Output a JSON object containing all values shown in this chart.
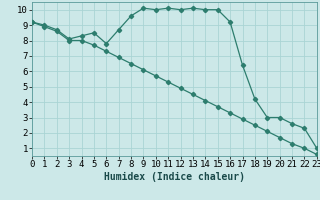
{
  "title": "",
  "xlabel": "Humidex (Indice chaleur)",
  "ylabel": "",
  "bg_color": "#cce8e8",
  "line_color": "#2d7d6e",
  "line1_x": [
    0,
    1,
    2,
    3,
    4,
    5,
    6,
    7,
    8,
    9,
    10,
    11,
    12,
    13,
    14,
    15,
    16,
    17,
    18,
    19,
    20,
    21,
    22,
    23
  ],
  "line1_y": [
    9.2,
    9.0,
    8.7,
    8.1,
    8.3,
    8.5,
    7.8,
    8.7,
    9.6,
    10.1,
    10.0,
    10.1,
    10.0,
    10.1,
    10.0,
    10.0,
    9.2,
    6.4,
    4.2,
    3.0,
    3.0,
    2.6,
    2.3,
    1.0
  ],
  "line2_x": [
    0,
    1,
    2,
    3,
    4,
    5,
    6,
    7,
    8,
    9,
    10,
    11,
    12,
    13,
    14,
    15,
    16,
    17,
    18,
    19,
    20,
    21,
    22,
    23
  ],
  "line2_y": [
    9.2,
    8.9,
    8.6,
    8.0,
    8.0,
    7.7,
    7.3,
    6.9,
    6.5,
    6.1,
    5.7,
    5.3,
    4.9,
    4.5,
    4.1,
    3.7,
    3.3,
    2.9,
    2.5,
    2.1,
    1.7,
    1.3,
    1.0,
    0.6
  ],
  "xlim": [
    0,
    23
  ],
  "ylim": [
    0.5,
    10.5
  ],
  "xticks": [
    0,
    1,
    2,
    3,
    4,
    5,
    6,
    7,
    8,
    9,
    10,
    11,
    12,
    13,
    14,
    15,
    16,
    17,
    18,
    19,
    20,
    21,
    22,
    23
  ],
  "yticks": [
    1,
    2,
    3,
    4,
    5,
    6,
    7,
    8,
    9,
    10
  ],
  "grid_color": "#aad4d4",
  "marker": "D",
  "markersize": 2.2,
  "linewidth": 0.9,
  "xlabel_fontsize": 7,
  "tick_fontsize": 6.5
}
